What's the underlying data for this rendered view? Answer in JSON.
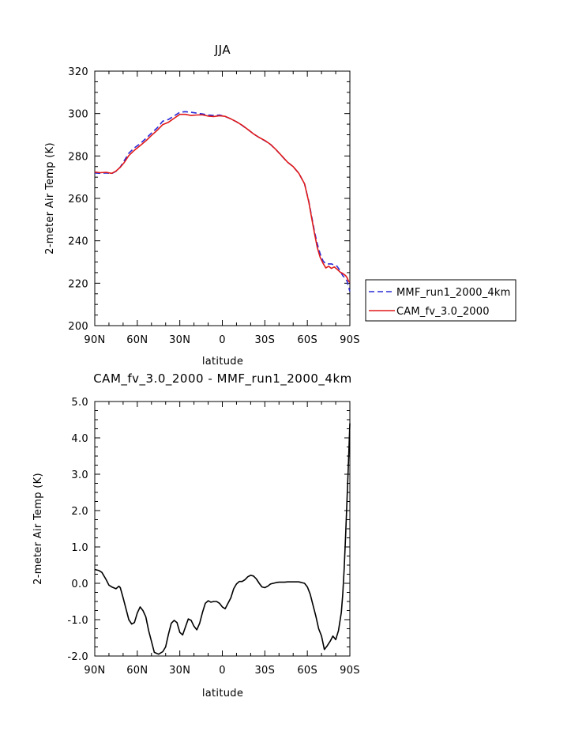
{
  "chart_data": [
    {
      "type": "line",
      "title": "JJA",
      "xlabel": "latitude",
      "ylabel": "2-meter Air Temp (K)",
      "xlim": [
        90,
        -90
      ],
      "ylim": [
        200,
        320
      ],
      "xticks": [
        90,
        60,
        30,
        0,
        -30,
        -60,
        -90
      ],
      "xtick_labels": [
        "90N",
        "60N",
        "30N",
        "0",
        "30S",
        "60S",
        "90S"
      ],
      "yticks": [
        200,
        220,
        240,
        260,
        280,
        300,
        320
      ],
      "ytick_labels": [
        "200",
        "220",
        "240",
        "260",
        "280",
        "300",
        "320"
      ],
      "legend_position": "right",
      "series": [
        {
          "name": "MMF_run1_2000_4km",
          "color": "#2a2ad8",
          "dash": "dashed",
          "x": [
            90,
            86,
            82,
            78,
            75,
            72,
            69,
            66,
            62,
            58,
            54,
            50,
            46,
            42,
            38,
            34,
            30,
            26,
            22,
            18,
            14,
            10,
            6,
            2,
            -2,
            -6,
            -10,
            -14,
            -18,
            -22,
            -26,
            -30,
            -34,
            -38,
            -42,
            -46,
            -50,
            -54,
            -58,
            -61,
            -63,
            -65,
            -67,
            -69,
            -71,
            -73,
            -75,
            -77,
            -79,
            -81,
            -83,
            -85,
            -87,
            -88,
            -89,
            -90
          ],
          "y": [
            272,
            271.8,
            272,
            271.7,
            272.8,
            274.8,
            278,
            281.3,
            283.8,
            285.8,
            288.2,
            290.8,
            293.2,
            296.4,
            297.2,
            298.9,
            300.6,
            300.9,
            300.6,
            300.2,
            299.8,
            299.3,
            299.1,
            299.3,
            298.6,
            297.5,
            296.1,
            294.4,
            292.5,
            290.4,
            288.7,
            287.2,
            285.4,
            282.9,
            279.9,
            277.1,
            275,
            271.8,
            266.9,
            258.6,
            251.5,
            244.6,
            238.6,
            234,
            230.6,
            229.1,
            229.1,
            229.1,
            228.5,
            228,
            226,
            223.6,
            222.1,
            221.1,
            218.3,
            216.2
          ]
        },
        {
          "name": "CAM_fv_3.0_2000",
          "color": "#e01919",
          "dash": "solid",
          "x": [
            90,
            86,
            82,
            78,
            75,
            72,
            69,
            66,
            62,
            58,
            54,
            50,
            46,
            42,
            38,
            34,
            30,
            26,
            22,
            18,
            14,
            10,
            6,
            2,
            -2,
            -6,
            -10,
            -14,
            -18,
            -22,
            -26,
            -30,
            -34,
            -38,
            -42,
            -46,
            -50,
            -54,
            -58,
            -61,
            -63,
            -65,
            -67,
            -69,
            -71,
            -73,
            -75,
            -77,
            -79,
            -81,
            -83,
            -85,
            -87,
            -88,
            -89,
            -90
          ],
          "y": [
            272.4,
            272.1,
            272.3,
            271.8,
            272.9,
            274.7,
            277.1,
            280.2,
            282.7,
            284.9,
            287.1,
            289.7,
            292.1,
            294.8,
            295.9,
            297.8,
            299.6,
            299.6,
            299.1,
            299.3,
            299.4,
            298.8,
            298.6,
            299,
            298.7,
            297.5,
            296.1,
            294.5,
            292.5,
            290.4,
            288.7,
            287.3,
            285.5,
            282.9,
            280,
            277.1,
            275,
            271.8,
            266.9,
            258.3,
            250.8,
            243.7,
            236.9,
            232.3,
            229.5,
            227.2,
            228,
            227,
            227.7,
            226.6,
            225.3,
            224.6,
            223.6,
            222.7,
            221,
            220.5
          ]
        }
      ]
    },
    {
      "type": "line",
      "title": "CAM_fv_3.0_2000 - MMF_run1_2000_4km",
      "xlabel": "latitude",
      "ylabel": "2-meter Air Temp (K)",
      "xlim": [
        90,
        -90
      ],
      "ylim": [
        -2.0,
        5.0
      ],
      "xticks": [
        90,
        60,
        30,
        0,
        -30,
        -60,
        -90
      ],
      "xtick_labels": [
        "90N",
        "60N",
        "30N",
        "0",
        "30S",
        "60S",
        "90S"
      ],
      "yticks": [
        -2.0,
        -1.0,
        0.0,
        1.0,
        2.0,
        3.0,
        4.0,
        5.0
      ],
      "ytick_labels": [
        "-2.0",
        "-1.0",
        "0.0",
        "1.0",
        "2.0",
        "3.0",
        "4.0",
        "5.0"
      ],
      "series": [
        {
          "color": "#000000",
          "dash": "solid",
          "x": [
            90,
            87,
            85,
            82,
            80,
            78,
            75,
            73,
            72,
            70,
            68,
            66,
            64,
            62,
            60,
            58,
            56,
            54,
            52,
            50,
            48,
            45,
            42,
            40,
            38,
            36,
            34,
            32,
            30,
            28,
            26,
            24,
            22,
            20,
            18,
            16,
            14,
            12,
            10,
            8,
            6,
            4,
            2,
            0,
            -2,
            -4,
            -6,
            -8,
            -10,
            -12,
            -14,
            -16,
            -18,
            -20,
            -22,
            -24,
            -26,
            -28,
            -30,
            -32,
            -34,
            -36,
            -38,
            -40,
            -42,
            -44,
            -46,
            -48,
            -50,
            -52,
            -54,
            -56,
            -58,
            -60,
            -62,
            -64,
            -66,
            -68,
            -70,
            -72,
            -74,
            -76,
            -78,
            -80,
            -82,
            -84,
            -85,
            -86,
            -87,
            -88,
            -89,
            -90
          ],
          "y": [
            0.38,
            0.35,
            0.3,
            0.1,
            -0.05,
            -0.1,
            -0.15,
            -0.08,
            -0.12,
            -0.4,
            -0.7,
            -1.0,
            -1.12,
            -1.08,
            -0.82,
            -0.65,
            -0.75,
            -0.92,
            -1.3,
            -1.6,
            -1.9,
            -1.95,
            -1.88,
            -1.75,
            -1.4,
            -1.1,
            -1.02,
            -1.08,
            -1.35,
            -1.42,
            -1.2,
            -0.98,
            -1.02,
            -1.18,
            -1.28,
            -1.1,
            -0.8,
            -0.55,
            -0.48,
            -0.52,
            -0.5,
            -0.5,
            -0.55,
            -0.65,
            -0.7,
            -0.55,
            -0.4,
            -0.15,
            -0.02,
            0.05,
            0.05,
            0.1,
            0.18,
            0.22,
            0.2,
            0.12,
            0.0,
            -0.1,
            -0.12,
            -0.08,
            -0.02,
            0.0,
            0.02,
            0.03,
            0.03,
            0.03,
            0.04,
            0.04,
            0.04,
            0.04,
            0.04,
            0.02,
            0.0,
            -0.1,
            -0.3,
            -0.6,
            -0.9,
            -1.25,
            -1.45,
            -1.82,
            -1.72,
            -1.6,
            -1.45,
            -1.55,
            -1.3,
            -0.8,
            -0.3,
            0.4,
            1.3,
            2.3,
            3.3,
            4.4
          ]
        }
      ]
    }
  ]
}
